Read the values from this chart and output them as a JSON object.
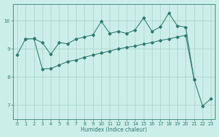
{
  "xlabel": "Humidex (Indice chaleur)",
  "background_color": "#cceee8",
  "line_color": "#2d7a6e",
  "grid_color": "#aad4cc",
  "line1_x": [
    0,
    1,
    2,
    3,
    4,
    5,
    6,
    7,
    8,
    9,
    10,
    11,
    12,
    13,
    14,
    15,
    16,
    17,
    18,
    19,
    20,
    21
  ],
  "line1_y": [
    8.78,
    9.35,
    9.36,
    9.22,
    8.8,
    9.22,
    9.18,
    9.35,
    9.42,
    9.5,
    9.97,
    9.55,
    9.62,
    9.55,
    9.67,
    10.1,
    9.62,
    9.78,
    10.27,
    9.82,
    9.77,
    7.9
  ],
  "line2_x": [
    1,
    2,
    3,
    4,
    5,
    6,
    7,
    8,
    9,
    10,
    11,
    12,
    13,
    14,
    15,
    16,
    17,
    18,
    19,
    20,
    21,
    22,
    23
  ],
  "line2_y": [
    9.35,
    9.36,
    8.28,
    8.3,
    8.42,
    8.55,
    8.6,
    8.7,
    8.78,
    8.85,
    8.92,
    9.0,
    9.05,
    9.1,
    9.17,
    9.22,
    9.3,
    9.35,
    9.42,
    9.48,
    7.9,
    6.97,
    7.22
  ],
  "ylim": [
    6.5,
    10.6
  ],
  "yticks": [
    7,
    8,
    9,
    10
  ],
  "xlim": [
    -0.5,
    23.5
  ],
  "xticks": [
    0,
    1,
    2,
    3,
    4,
    5,
    6,
    7,
    8,
    9,
    10,
    11,
    12,
    13,
    14,
    15,
    16,
    17,
    18,
    19,
    20,
    21,
    22,
    23
  ]
}
